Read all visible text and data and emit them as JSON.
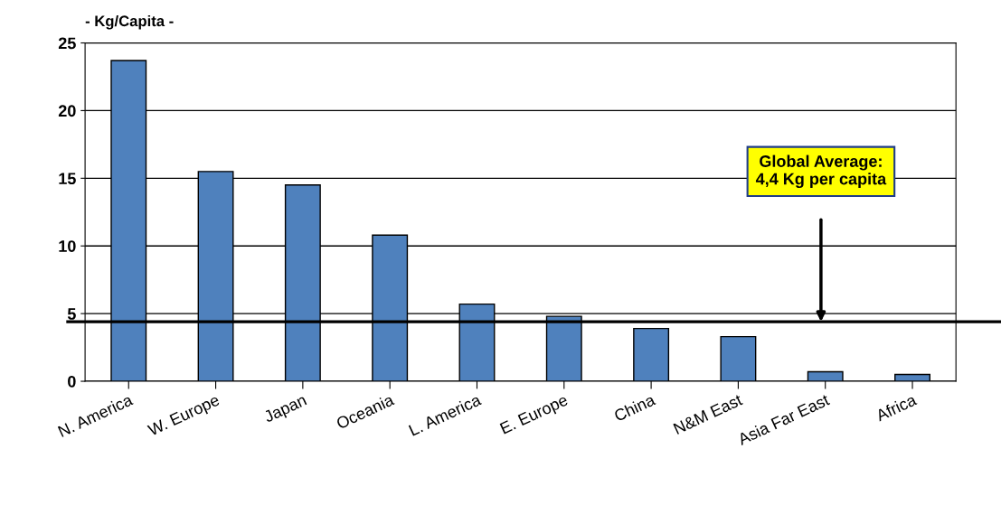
{
  "chart_data": {
    "type": "bar",
    "ylabel": "- Kg/Capita -",
    "categories": [
      "N. America",
      "W. Europe",
      "Japan",
      "Oceania",
      "L. America",
      "E. Europe",
      "China",
      "N&M East",
      "Asia Far East",
      "Africa"
    ],
    "values": [
      23.7,
      15.5,
      14.5,
      10.8,
      5.7,
      4.8,
      3.9,
      3.3,
      0.7,
      0.5
    ],
    "color": "#4f81bd",
    "ylim": [
      0,
      25
    ],
    "yticks": [
      0,
      5,
      10,
      15,
      20,
      25
    ],
    "grid": "y",
    "ref_lines": [
      {
        "axis": "y",
        "value": 4.4,
        "label": "Global Average:\n4,4 Kg per capita",
        "color": "#000000"
      }
    ]
  }
}
